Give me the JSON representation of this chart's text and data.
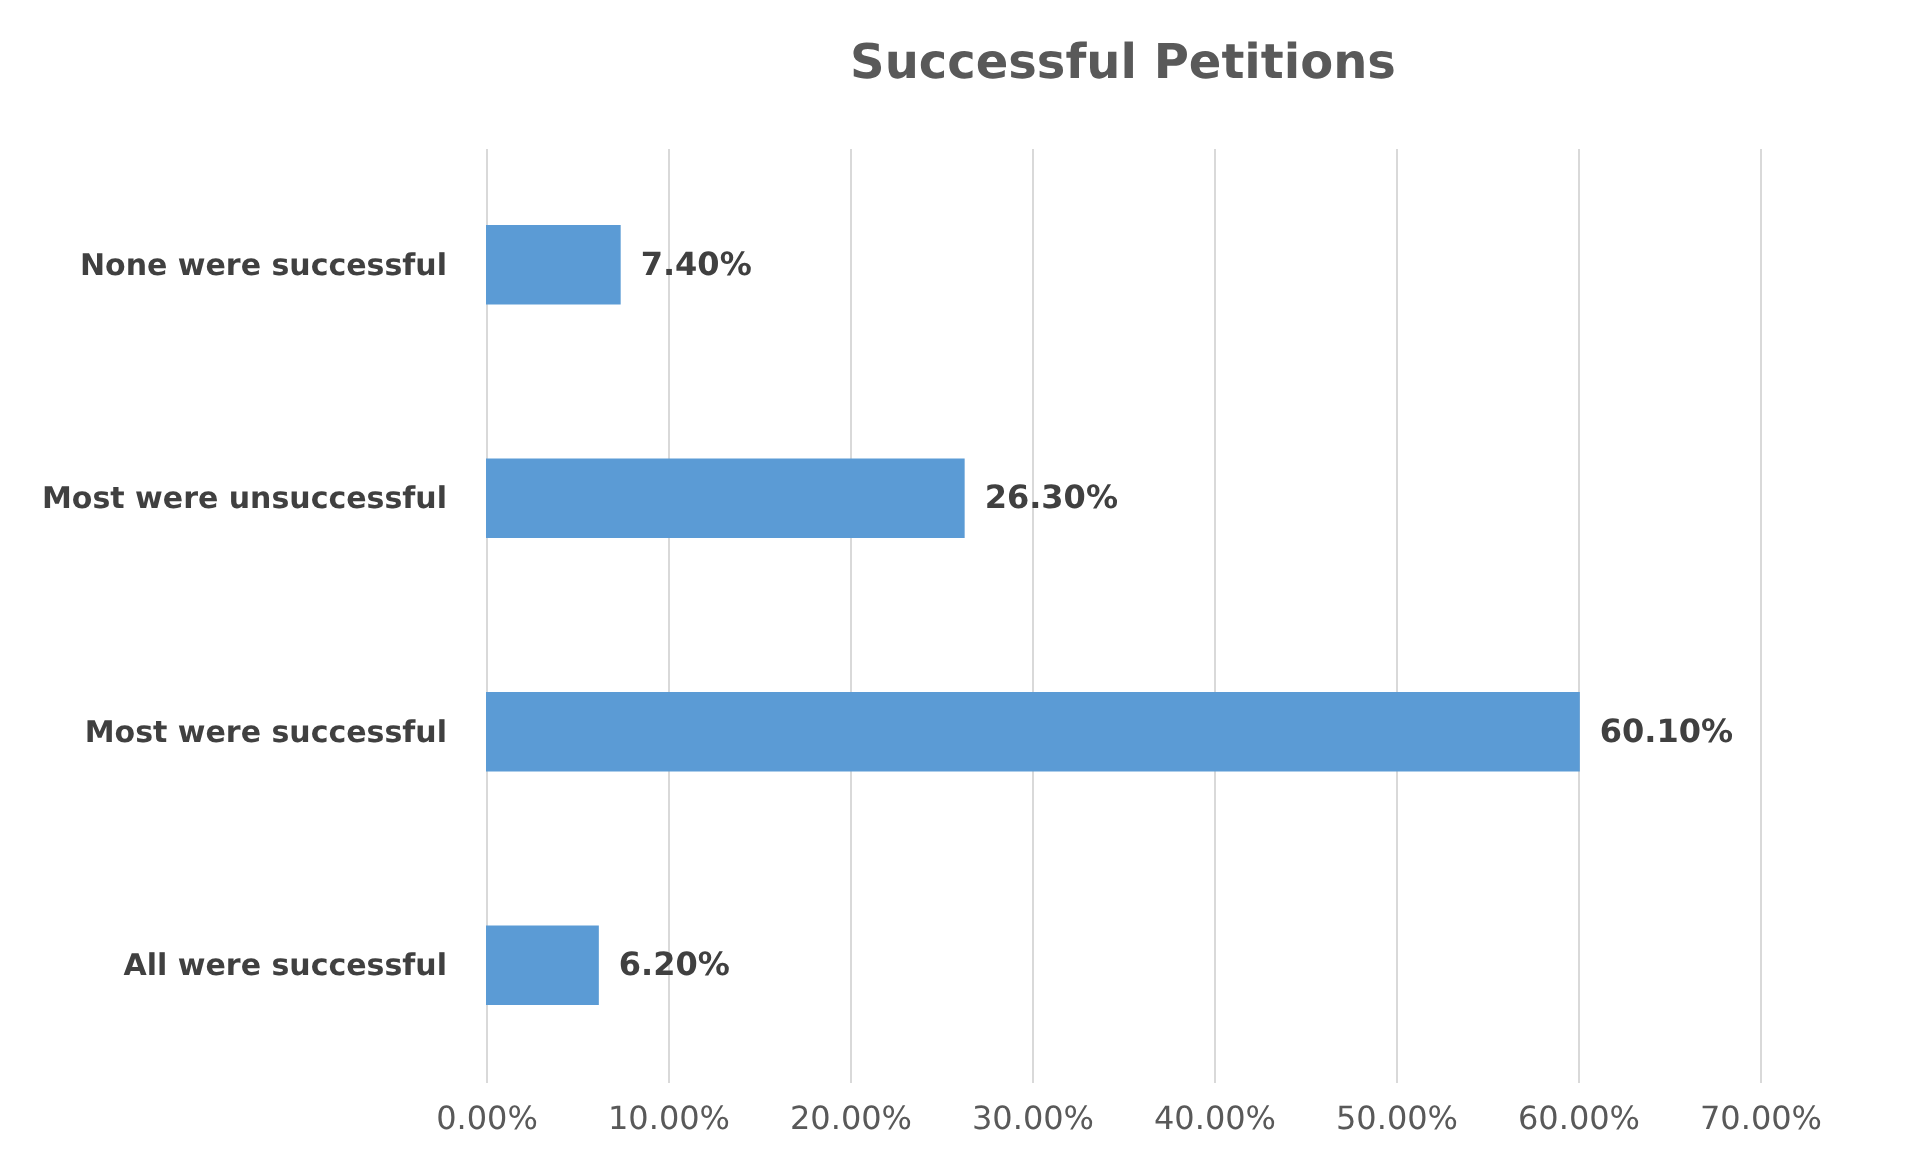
{
  "chart_data": {
    "type": "bar",
    "orientation": "horizontal",
    "title": "Successful Petitions",
    "categories": [
      "None were successful",
      "Most were unsuccessful",
      "Most were successful",
      "All were successful"
    ],
    "values": [
      7.4,
      26.3,
      60.1,
      6.2
    ],
    "value_labels": [
      "7.40%",
      "26.30%",
      "60.10%",
      "6.20%"
    ],
    "color": "#5b9bd5",
    "xlim": [
      0,
      70
    ],
    "xticks": [
      {
        "value": 0,
        "label": "0.00%"
      },
      {
        "value": 10,
        "label": "10.00%"
      },
      {
        "value": 20,
        "label": "20.00%"
      },
      {
        "value": 30,
        "label": "30.00%"
      },
      {
        "value": 40,
        "label": "40.00%"
      },
      {
        "value": 50,
        "label": "50.00%"
      },
      {
        "value": 60,
        "label": "60.00%"
      },
      {
        "value": 70,
        "label": "70.00%"
      }
    ],
    "grid": "x"
  }
}
